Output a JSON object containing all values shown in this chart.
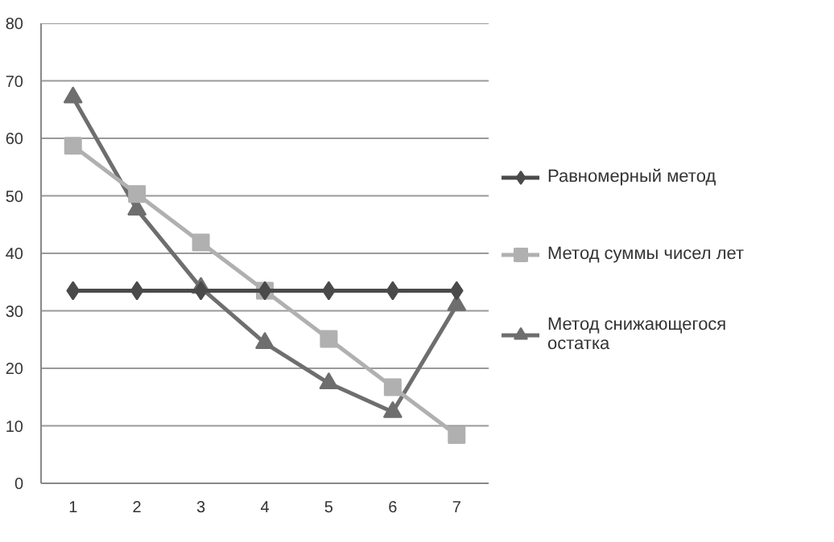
{
  "chart_data": {
    "type": "line",
    "categories": [
      "1",
      "2",
      "3",
      "4",
      "5",
      "6",
      "7"
    ],
    "series": [
      {
        "name": "Равномерный метод",
        "color": "#4a4a4a",
        "marker": "diamond",
        "values": [
          33.5,
          33.5,
          33.5,
          33.5,
          33.5,
          33.5,
          33.5
        ]
      },
      {
        "name": "Метод суммы чисел лет",
        "color": "#b0b0b0",
        "marker": "square",
        "values": [
          58.7,
          50.3,
          41.9,
          33.5,
          25.1,
          16.7,
          8.4
        ]
      },
      {
        "name": "Метод снижающегося остатка",
        "color": "#6e6e6e",
        "marker": "triangle",
        "values": [
          67.1,
          47.6,
          34.0,
          24.4,
          17.4,
          12.4,
          31.0
        ]
      }
    ],
    "ylim": [
      0,
      80
    ],
    "yticks": [
      0,
      10,
      20,
      30,
      40,
      50,
      60,
      70,
      80
    ],
    "grid": "y",
    "legend": "right"
  }
}
